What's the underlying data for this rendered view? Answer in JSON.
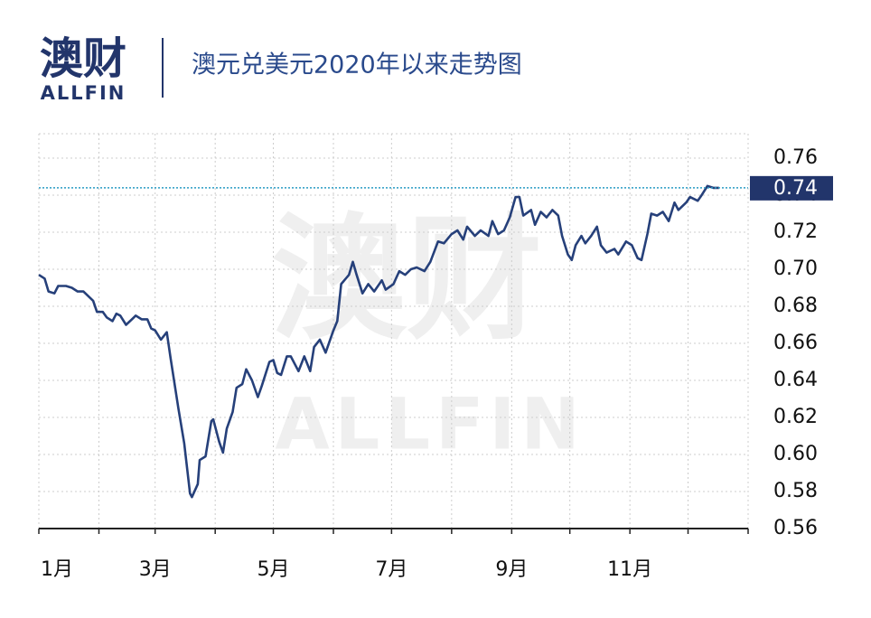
{
  "logo": {
    "mark": "澳财",
    "text": "ALLFIN"
  },
  "chart_data": {
    "type": "line",
    "title": "澳元兑美元2020年以来走势图",
    "x": [
      0,
      3,
      5,
      8,
      10,
      14,
      17,
      20,
      23,
      26,
      28,
      30,
      33,
      35,
      38,
      40,
      42,
      45,
      48,
      50,
      53,
      56,
      58,
      60,
      63,
      66,
      68,
      72,
      75,
      78,
      79,
      82,
      83,
      86,
      89,
      90,
      93,
      95,
      97,
      100,
      102,
      105,
      107,
      110,
      113,
      115,
      119,
      121,
      123,
      125,
      128,
      130,
      134,
      137,
      140,
      142,
      145,
      148,
      152,
      154,
      156,
      160,
      162,
      164,
      167,
      170,
      173,
      177,
      179,
      183,
      186,
      189,
      192,
      195,
      199,
      202,
      206,
      209,
      213,
      216,
      219,
      221,
      225,
      228,
      232,
      234,
      237,
      240,
      243,
      246,
      248,
      250,
      254,
      256,
      259,
      262,
      265,
      268,
      270,
      273,
      275,
      277,
      280,
      282,
      285,
      288,
      290,
      293,
      297,
      299,
      303,
      306,
      309,
      311,
      314,
      316,
      319,
      322,
      325,
      328,
      330,
      334,
      336,
      340,
      342,
      345,
      348,
      351
    ],
    "values": [
      0.697,
      0.695,
      0.688,
      0.687,
      0.691,
      0.691,
      0.69,
      0.688,
      0.688,
      0.685,
      0.683,
      0.677,
      0.677,
      0.674,
      0.672,
      0.676,
      0.675,
      0.67,
      0.673,
      0.675,
      0.673,
      0.673,
      0.668,
      0.667,
      0.662,
      0.666,
      0.652,
      0.625,
      0.606,
      0.579,
      0.577,
      0.584,
      0.597,
      0.599,
      0.618,
      0.619,
      0.607,
      0.601,
      0.614,
      0.623,
      0.636,
      0.638,
      0.646,
      0.64,
      0.631,
      0.637,
      0.65,
      0.651,
      0.644,
      0.643,
      0.653,
      0.653,
      0.645,
      0.653,
      0.645,
      0.658,
      0.662,
      0.655,
      0.667,
      0.672,
      0.692,
      0.697,
      0.704,
      0.697,
      0.687,
      0.692,
      0.688,
      0.694,
      0.689,
      0.692,
      0.699,
      0.697,
      0.7,
      0.701,
      0.699,
      0.704,
      0.715,
      0.714,
      0.719,
      0.721,
      0.716,
      0.723,
      0.718,
      0.721,
      0.718,
      0.726,
      0.719,
      0.721,
      0.728,
      0.739,
      0.739,
      0.729,
      0.732,
      0.724,
      0.731,
      0.728,
      0.732,
      0.729,
      0.718,
      0.708,
      0.705,
      0.713,
      0.718,
      0.714,
      0.718,
      0.723,
      0.713,
      0.709,
      0.711,
      0.708,
      0.715,
      0.713,
      0.706,
      0.705,
      0.719,
      0.73,
      0.729,
      0.731,
      0.726,
      0.736,
      0.732,
      0.736,
      0.739,
      0.737,
      0.74,
      0.745,
      0.744,
      0.744
    ],
    "color": "#26407a",
    "latest": {
      "value": 0.744,
      "label": "0.74"
    },
    "xlim": [
      0,
      366
    ],
    "xticks": [
      {
        "value": 0,
        "label": "1月"
      },
      {
        "value": 60,
        "label": "3月"
      },
      {
        "value": 121,
        "label": "5月"
      },
      {
        "value": 182,
        "label": "7月"
      },
      {
        "value": 244,
        "label": "9月"
      },
      {
        "value": 305,
        "label": "11月"
      }
    ],
    "xgrid": [
      31,
      91,
      152,
      213,
      274,
      335,
      366
    ],
    "ylim": [
      0.56,
      0.7732
    ],
    "yticks": [
      {
        "value": 0.56,
        "label": "0.56"
      },
      0.58,
      {
        "value": 0.6,
        "label": "0.60"
      },
      0.62,
      0.64,
      0.66,
      0.68,
      {
        "value": 0.7,
        "label": "0.70"
      },
      0.72,
      0.74,
      0.76
    ],
    "grid": true
  }
}
